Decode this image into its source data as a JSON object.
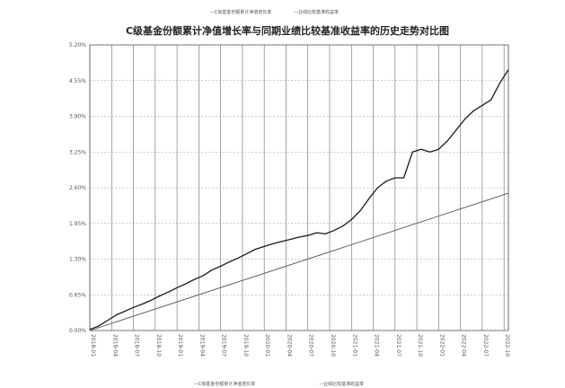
{
  "chart_data": {
    "type": "line",
    "top_caption": "",
    "title": "C级基金份额累计净值增长率与同期业绩比较基准收益率的历史走势对比图",
    "legend_top": [
      "—C级基金份额累计净值增长率",
      "—业绩比较基准收益率"
    ],
    "legend_bottom": [
      "—C级基金份额累计净值增长率",
      "—业绩比较基准收益率"
    ],
    "y_tick_labels": [
      "0.00%",
      "0.65%",
      "1.30%",
      "1.95%",
      "2.60%",
      "3.25%",
      "3.90%",
      "4.55%",
      "5.20%"
    ],
    "ylim": [
      0,
      5.2
    ],
    "x_tick_labels": [
      "2018-01",
      "2018-04",
      "2018-07",
      "2018-10",
      "2019-01",
      "2019-04",
      "2019-07",
      "2019-10",
      "2020-01",
      "2020-04",
      "2020-07",
      "2020-10",
      "2021-01",
      "2021-04",
      "2021-07",
      "2021-10",
      "2022-01",
      "2022-04",
      "2022-07",
      "2022-10"
    ],
    "grid": true,
    "series": [
      {
        "name": "C级基金份额累计净值增长率",
        "color": "#1a1a1a",
        "x": [
          0,
          0.4,
          0.8,
          1.2,
          1.6,
          2.0,
          2.4,
          2.8,
          3.2,
          3.6,
          4.0,
          4.4,
          4.8,
          5.2,
          5.6,
          6.0,
          6.4,
          6.8,
          7.2,
          7.6,
          8.0,
          8.4,
          8.8,
          9.2,
          9.6,
          10.0,
          10.4,
          10.8,
          11.2,
          11.6,
          12.0,
          12.4,
          12.8,
          13.2,
          13.6,
          14.0,
          14.4,
          14.8,
          15.2,
          15.6,
          16.0,
          16.4,
          16.8,
          17.2,
          17.6,
          18.0,
          18.4,
          18.8,
          19.2
        ],
        "values": [
          0.02,
          0.08,
          0.18,
          0.28,
          0.35,
          0.42,
          0.48,
          0.55,
          0.63,
          0.7,
          0.78,
          0.85,
          0.93,
          1.0,
          1.1,
          1.17,
          1.25,
          1.32,
          1.4,
          1.48,
          1.53,
          1.58,
          1.62,
          1.66,
          1.7,
          1.73,
          1.78,
          1.76,
          1.82,
          1.9,
          2.02,
          2.18,
          2.4,
          2.6,
          2.72,
          2.78,
          2.78,
          3.25,
          3.3,
          3.25,
          3.3,
          3.45,
          3.65,
          3.85,
          4.0,
          4.1,
          4.2,
          4.5,
          4.75
        ]
      },
      {
        "name": "业绩比较基准收益率",
        "color": "#555555",
        "x": [
          0,
          19.2
        ],
        "values": [
          0.0,
          2.5
        ]
      }
    ]
  }
}
